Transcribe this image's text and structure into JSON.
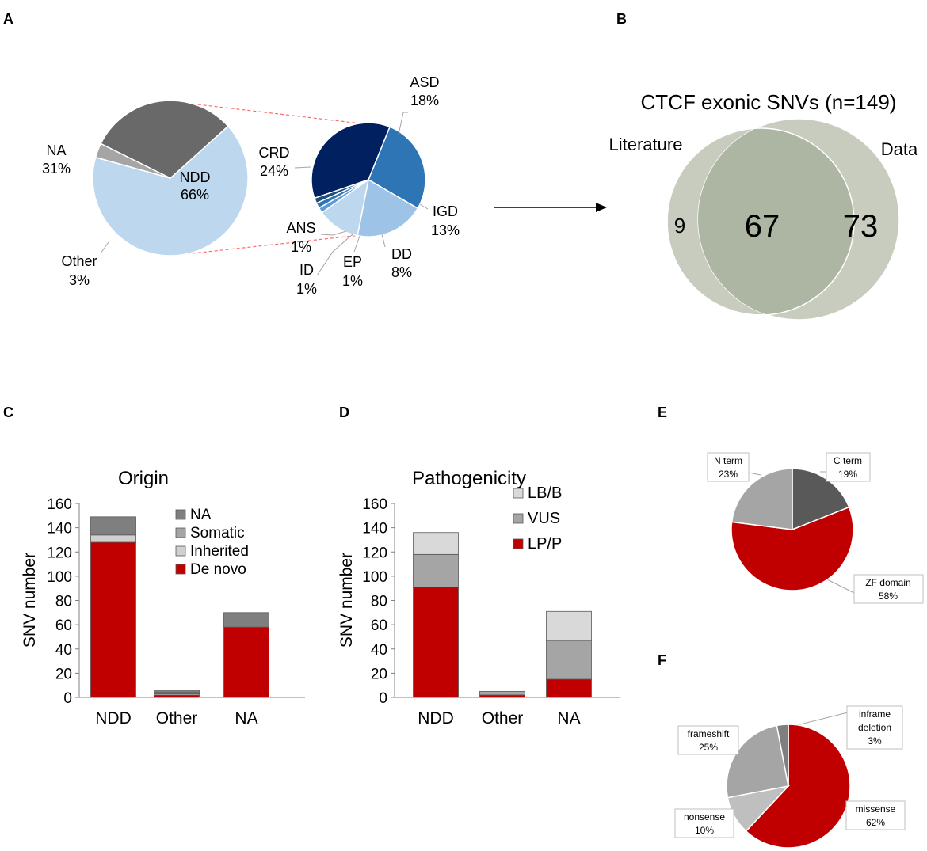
{
  "panels": {
    "a": "A",
    "b": "B",
    "c": "C",
    "d": "D",
    "e": "E",
    "f": "F"
  },
  "colors": {
    "red": "#c00000",
    "blue_light": "#bdd7ee",
    "grey_dark": "#696969",
    "grey_mid": "#a5a5a5",
    "venn": "#c8ccbf",
    "venn_overlap": "#adb5a3"
  },
  "chart_data": [
    {
      "id": "A-main",
      "type": "pie",
      "title": "",
      "slices": [
        {
          "label": "NDD",
          "pct": "66%",
          "value": 66,
          "color": "#bdd7ee"
        },
        {
          "label": "Other",
          "pct": "3%",
          "value": 3,
          "color": "#a5a5a5"
        },
        {
          "label": "NA",
          "pct": "31%",
          "value": 31,
          "color": "#696969"
        }
      ]
    },
    {
      "id": "A-sub",
      "type": "pie",
      "title": "",
      "slices": [
        {
          "label": "ASD",
          "pct": "18%",
          "value": 18,
          "color": "#2e75b6"
        },
        {
          "label": "IGD",
          "pct": "13%",
          "value": 13,
          "color": "#9dc3e6"
        },
        {
          "label": "DD",
          "pct": "8%",
          "value": 8,
          "color": "#bdd7ee"
        },
        {
          "label": "EP",
          "pct": "1%",
          "value": 1,
          "color": "#5b9bd5"
        },
        {
          "label": "ID",
          "pct": "1%",
          "value": 1,
          "color": "#2e75b6"
        },
        {
          "label": "ANS",
          "pct": "1%",
          "value": 1,
          "color": "#1f4e79"
        },
        {
          "label": "CRD",
          "pct": "24%",
          "value": 24,
          "color": "#002060"
        }
      ]
    },
    {
      "id": "B",
      "type": "venn",
      "title": "CTCF exonic SNVs (n=149)",
      "sets": [
        {
          "label": "Literature",
          "only": "9"
        },
        {
          "label": "Data",
          "only": "73"
        }
      ],
      "overlap": "67"
    },
    {
      "id": "C",
      "type": "bar",
      "stacked": true,
      "title": "Origin",
      "ylabel": "SNV number",
      "ylim": [
        0,
        160
      ],
      "yticks": [
        "0",
        "20",
        "40",
        "60",
        "80",
        "100",
        "120",
        "140",
        "160"
      ],
      "categories": [
        "NDD",
        "Other",
        "NA"
      ],
      "series": [
        {
          "name": "De novo",
          "color": "#c00000",
          "values": [
            128,
            2,
            58
          ]
        },
        {
          "name": "Inherited",
          "color": "#d0d0d0",
          "values": [
            6,
            1,
            0
          ]
        },
        {
          "name": "Somatic",
          "color": "#a5a5a5",
          "values": [
            0,
            1,
            0
          ]
        },
        {
          "name": "NA",
          "color": "#7f7f7f",
          "values": [
            15,
            2,
            12
          ]
        }
      ],
      "legend": [
        "NA",
        "Somatic",
        "Inherited",
        "De novo"
      ]
    },
    {
      "id": "D",
      "type": "bar",
      "stacked": true,
      "title": "Pathogenicity",
      "ylabel": "SNV number",
      "ylim": [
        0,
        160
      ],
      "yticks": [
        "0",
        "20",
        "40",
        "60",
        "80",
        "100",
        "120",
        "140",
        "160"
      ],
      "categories": [
        "NDD",
        "Other",
        "NA"
      ],
      "series": [
        {
          "name": "LP/P",
          "color": "#c00000",
          "values": [
            91,
            2,
            15
          ]
        },
        {
          "name": "VUS",
          "color": "#a5a5a5",
          "values": [
            27,
            3,
            32
          ]
        },
        {
          "name": "LB/B",
          "color": "#d9d9d9",
          "values": [
            18,
            0,
            24
          ]
        }
      ],
      "legend": [
        "LB/B",
        "VUS",
        "LP/P"
      ]
    },
    {
      "id": "E",
      "type": "pie",
      "title": "",
      "slices": [
        {
          "label": "C term",
          "pct": "19%",
          "value": 19,
          "color": "#595959"
        },
        {
          "label": "ZF domain",
          "pct": "58%",
          "value": 58,
          "color": "#c00000"
        },
        {
          "label": "N term",
          "pct": "23%",
          "value": 23,
          "color": "#a5a5a5"
        }
      ]
    },
    {
      "id": "F",
      "type": "pie",
      "title": "",
      "slices": [
        {
          "label": "missense",
          "pct": "62%",
          "value": 62,
          "color": "#c00000"
        },
        {
          "label": "nonsense",
          "pct": "10%",
          "value": 10,
          "color": "#bfbfbf"
        },
        {
          "label": "frameshift",
          "pct": "25%",
          "value": 25,
          "color": "#a5a5a5"
        },
        {
          "label": "inframe deletion",
          "pct": "3%",
          "value": 3,
          "color": "#7f7f7f",
          "label_lines": [
            "inframe",
            "deletion"
          ]
        }
      ]
    }
  ]
}
